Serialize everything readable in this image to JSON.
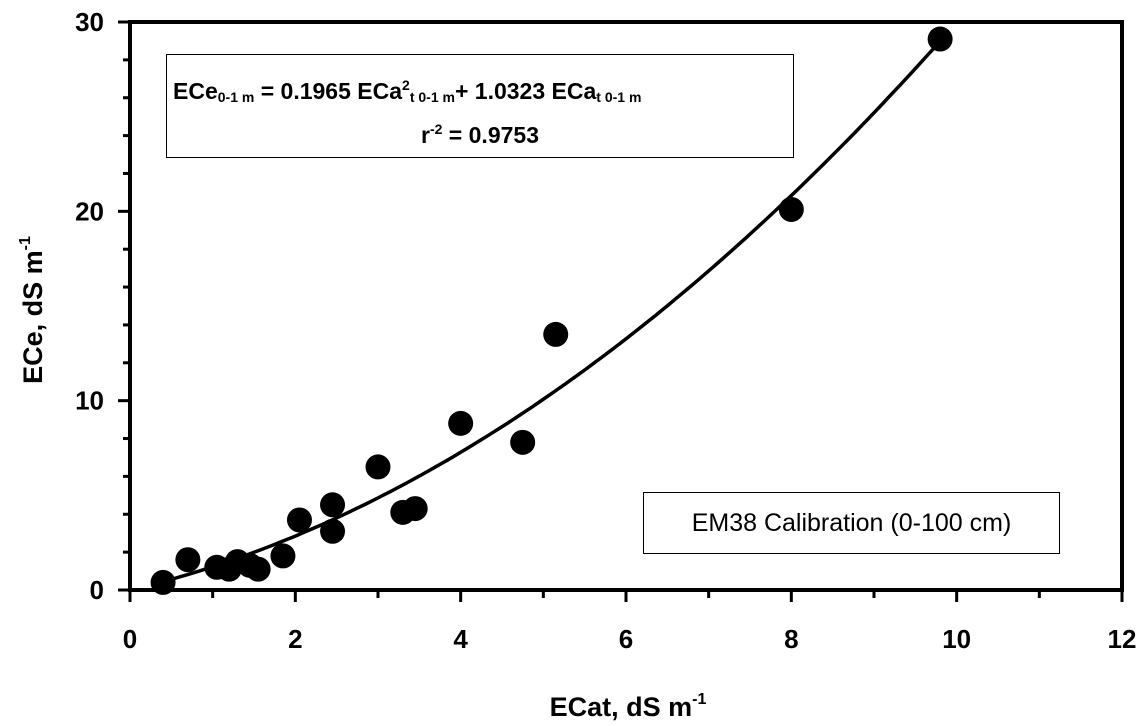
{
  "chart_data": {
    "type": "scatter",
    "xlabel": "ECat, dS m",
    "xlabel_sup": "-1",
    "ylabel": "ECe, dS m",
    "ylabel_sup": "-1",
    "xlim": [
      0,
      12
    ],
    "ylim": [
      0,
      30
    ],
    "x_ticks": [
      0,
      2,
      4,
      6,
      8,
      10,
      12
    ],
    "y_ticks": [
      0,
      10,
      20,
      30
    ],
    "grid": false,
    "points": [
      {
        "x": 0.4,
        "y": 0.4
      },
      {
        "x": 0.7,
        "y": 1.6
      },
      {
        "x": 1.05,
        "y": 1.2
      },
      {
        "x": 1.2,
        "y": 1.1
      },
      {
        "x": 1.3,
        "y": 1.5
      },
      {
        "x": 1.45,
        "y": 1.3
      },
      {
        "x": 1.55,
        "y": 1.1
      },
      {
        "x": 1.85,
        "y": 1.8
      },
      {
        "x": 2.05,
        "y": 3.7
      },
      {
        "x": 2.45,
        "y": 4.5
      },
      {
        "x": 2.45,
        "y": 3.1
      },
      {
        "x": 3.0,
        "y": 6.5
      },
      {
        "x": 3.3,
        "y": 4.1
      },
      {
        "x": 3.45,
        "y": 4.3
      },
      {
        "x": 4.0,
        "y": 8.8
      },
      {
        "x": 4.75,
        "y": 7.8
      },
      {
        "x": 5.15,
        "y": 13.5
      },
      {
        "x": 8.0,
        "y": 20.1
      },
      {
        "x": 9.8,
        "y": 29.1
      }
    ],
    "fit": {
      "a": 0.1965,
      "b": 1.0323,
      "x_from": 0.4,
      "x_to": 9.8
    },
    "equation": {
      "lhs": "ECe",
      "lhs_sub": "0-1 m",
      "eq1": " = 0.1965 ECa",
      "sup2": "2",
      "sub2": "t 0-1 m",
      "plus": "+ 1.0323 ECa",
      "sub3": "t 0-1 m",
      "r_symbol": "r",
      "r_sup": "-2",
      "r_value": " = 0.9753"
    },
    "annotation": "EM38 Calibration (0-100 cm)"
  }
}
